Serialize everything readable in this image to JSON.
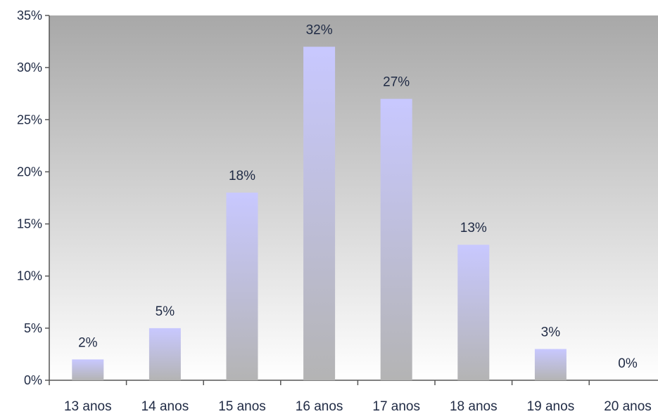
{
  "chart_data": {
    "type": "bar",
    "categories": [
      "13 anos",
      "14 anos",
      "15 anos",
      "16 anos",
      "17 anos",
      "18 anos",
      "19 anos",
      "20 anos"
    ],
    "values": [
      2,
      5,
      18,
      32,
      27,
      13,
      3,
      0
    ],
    "data_labels": [
      "2%",
      "5%",
      "18%",
      "32%",
      "27%",
      "13%",
      "3%",
      "0%"
    ],
    "y_ticks": [
      0,
      5,
      10,
      15,
      20,
      25,
      30,
      35
    ],
    "y_tick_labels": [
      "0%",
      "5%",
      "10%",
      "15%",
      "20%",
      "25%",
      "30%",
      "35%"
    ],
    "ylim": [
      0,
      35
    ],
    "title": "",
    "xlabel": "",
    "ylabel": "",
    "grid": false,
    "legend": "none",
    "colors": {
      "bar_top": "#c8c8ff",
      "bar_bottom": "#b4b4b4",
      "plot_bg_top": "#a8a8a8",
      "plot_bg_bottom": "#ffffff",
      "axis": "#555555",
      "text": "#1f2a44"
    }
  }
}
